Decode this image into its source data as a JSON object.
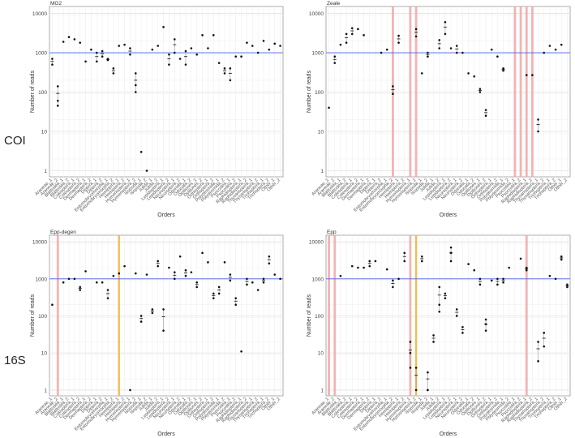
{
  "figure": {
    "row_labels": [
      "COI",
      "16S"
    ]
  },
  "categories": [
    "Araneae_1",
    "Araneae_2",
    "Blattodea_1",
    "Blattodea_2",
    "Coleoptera_1",
    "Coleoptera_2",
    "Dermaptera_1",
    "Dermaptera_2",
    "Diptera_1",
    "Diptera_2",
    "Entomobryomorpha_1",
    "Entomobryomorpha_2",
    "Hemiptera_1",
    "Hemiptera_2",
    "Hymenoptera_1",
    "Hymenoptera_2",
    "Isopoda_1",
    "Isopoda_2",
    "Julida_1",
    "Julida_2",
    "Lepidoptera_1",
    "Lepidoptera_2",
    "Neuroptera_1",
    "Neuroptera_2",
    "Odonata_1",
    "Odonata_2",
    "Opiliones_1",
    "Opiliones_2",
    "Orthoptera_1",
    "Orthoptera_2",
    "Polydesmida_1",
    "Polydesmida_2",
    "Psocodea_1",
    "Psocodea_2",
    "Raphidioptera_1",
    "Raphidioptera_2",
    "Thysanoptera_1",
    "Thysanoptera_2",
    "Trichoptera_1",
    "Trichoptera_2",
    "Other_1",
    "Other_2"
  ],
  "chart_data": [
    {
      "type": "scatter",
      "title": "MG2",
      "xlabel": "Orders",
      "ylabel": "Number of reads",
      "yscale": "log10",
      "ylim": [
        0.7,
        15000
      ],
      "yticks": [
        "1",
        "10",
        "100",
        "1000",
        "10000"
      ],
      "reference_line": 1000,
      "reference_color": "#4a5cf0",
      "highlight_color": "#f4a6a6",
      "orange_color": "#f0b94d",
      "pink_bands": [],
      "orange_bands": [],
      "points": [
        [
          700,
          500
        ],
        [
          140,
          45,
          60
        ],
        [
          1900
        ],
        [
          2500
        ],
        [
          2200
        ],
        [
          1800
        ],
        [
          600
        ],
        [
          1200
        ],
        [
          1000,
          600
        ],
        [
          800,
          1100
        ],
        [
          650,
          700
        ],
        [
          400,
          300
        ],
        [
          1500
        ],
        [
          1600
        ],
        [
          1300,
          900
        ],
        [
          300,
          100,
          150
        ],
        [
          3
        ],
        [
          1
        ],
        [
          1200
        ],
        [
          1500
        ],
        [
          4500
        ],
        [
          500,
          900
        ],
        [
          1000,
          2200
        ],
        [
          700
        ],
        [
          500,
          1100
        ],
        [
          1300
        ],
        [
          900
        ],
        [
          2800
        ],
        [
          1300
        ],
        [
          2800
        ],
        [
          550
        ],
        [
          300,
          400
        ],
        [
          200,
          400
        ],
        [
          800
        ],
        [
          800
        ],
        [
          1800
        ],
        [
          1500
        ],
        [
          1000
        ],
        [
          2000
        ],
        [
          1200
        ],
        [
          1700
        ],
        [
          1500
        ]
      ]
    },
    {
      "type": "scatter",
      "title": "Zeale",
      "xlabel": "Orders",
      "ylabel": "Number of reads",
      "yscale": "log10",
      "ylim": [
        0.7,
        15000
      ],
      "yticks": [
        "1",
        "10",
        "100",
        "1000",
        "10000"
      ],
      "reference_line": 1000,
      "reference_color": "#4a5cf0",
      "highlight_color": "#f4a6a6",
      "orange_color": "#f0b94d",
      "pink_bands": [
        11,
        14,
        15,
        32,
        33,
        34,
        35
      ],
      "orange_bands": [],
      "points": [
        [
          40
        ],
        [
          800,
          550
        ],
        [
          1600
        ],
        [
          1800,
          3000
        ],
        [
          4200,
          3000
        ],
        [
          4000
        ],
        [
          2800
        ],
        [
          null
        ],
        [
          null
        ],
        [
          1000
        ],
        [
          1200
        ],
        [
          140,
          90
        ],
        [
          1800,
          2700
        ],
        [
          null
        ],
        [
          null
        ],
        [
          4000,
          2600
        ],
        [
          300
        ],
        [
          1000,
          800
        ],
        [
          null
        ],
        [
          2100,
          1300
        ],
        [
          6000,
          3000
        ],
        [
          1300
        ],
        [
          1500,
          1000
        ],
        [
          1000
        ],
        [
          300
        ],
        [
          250
        ],
        [
          120,
          100
        ],
        [
          35,
          25
        ],
        [
          1200
        ],
        [
          800
        ],
        [
          400,
          350
        ],
        [
          null
        ],
        [
          null
        ],
        [
          null
        ],
        [
          270
        ],
        [
          270
        ],
        [
          20,
          10
        ],
        [
          1000
        ],
        [
          1500
        ],
        [
          1200
        ],
        [
          1600
        ],
        [
          null
        ]
      ]
    },
    {
      "type": "scatter",
      "title": "Epp-degen",
      "xlabel": "Orders",
      "ylabel": "Number of reads",
      "yscale": "log10",
      "ylim": [
        0.7,
        15000
      ],
      "yticks": [
        "1",
        "10",
        "100",
        "1000",
        "10000"
      ],
      "reference_line": 1000,
      "reference_color": "#4a5cf0",
      "highlight_color": "#f4a6a6",
      "orange_color": "#f0b94d",
      "pink_bands": [
        1
      ],
      "orange_bands": [
        12
      ],
      "points": [
        [
          200
        ],
        [
          null
        ],
        [
          800
        ],
        [
          1000
        ],
        [
          1000
        ],
        [
          500,
          600
        ],
        [
          1600
        ],
        [
          null
        ],
        [
          800
        ],
        [
          800
        ],
        [
          500,
          300
        ],
        [
          1200
        ],
        [
          1400
        ],
        [
          2200
        ],
        [
          1
        ],
        [
          1400
        ],
        [
          100,
          70
        ],
        [
          1300
        ],
        [
          120,
          150
        ],
        [
          2200,
          3000
        ],
        [
          150,
          40
        ],
        [
          2000
        ],
        [
          1000,
          1500
        ],
        [
          4000
        ],
        [
          1700,
          1200
        ],
        [
          1500
        ],
        [
          800,
          600
        ],
        [
          5000
        ],
        [
          2800
        ],
        [
          400,
          300
        ],
        [
          600,
          400
        ],
        [
          2800
        ],
        [
          1300,
          900
        ],
        [
          200,
          300
        ],
        [
          11
        ],
        [
          1000,
          700
        ],
        [
          800
        ],
        [
          500
        ],
        [
          1000,
          800
        ],
        [
          4000,
          2600
        ],
        [
          1300
        ],
        [
          1000
        ]
      ]
    },
    {
      "type": "scatter",
      "title": "Epp",
      "xlabel": "Orders",
      "ylabel": "Number of reads",
      "yscale": "log10",
      "ylim": [
        0.7,
        15000
      ],
      "yticks": [
        "1",
        "10",
        "100",
        "1000",
        "10000"
      ],
      "reference_line": 1000,
      "reference_color": "#4a5cf0",
      "highlight_color": "#f4a6a6",
      "orange_color": "#f0b94d",
      "pink_bands": [
        0,
        1,
        14,
        34
      ],
      "orange_bands": [
        15
      ],
      "points": [
        [
          null
        ],
        [
          null
        ],
        [
          1200
        ],
        [
          null
        ],
        [
          2200
        ],
        [
          2000
        ],
        [
          2000
        ],
        [
          2200,
          3000
        ],
        [
          3000
        ],
        [
          null
        ],
        [
          1800
        ],
        [
          900,
          600
        ],
        [
          1000
        ],
        [
          3000,
          5000
        ],
        [
          4,
          10,
          20
        ],
        [
          4,
          1
        ],
        [
          4000,
          3000
        ],
        [
          3,
          1,
          1
        ],
        [
          30,
          20
        ],
        [
          600,
          200,
          130
        ],
        [
          300,
          400
        ],
        [
          7000,
          5000,
          3000
        ],
        [
          100,
          150
        ],
        [
          35,
          50
        ],
        [
          2500
        ],
        [
          1700
        ],
        [
          1000,
          700
        ],
        [
          80,
          60,
          40
        ],
        [
          900
        ],
        [
          1000,
          700
        ],
        [
          1000,
          800
        ],
        [
          2000
        ],
        [
          null
        ],
        [
          3500
        ],
        [
          1700,
          2000
        ],
        [
          null
        ],
        [
          20,
          6
        ],
        [
          35,
          15
        ],
        [
          1200
        ],
        [
          1000
        ],
        [
          4000,
          3300
        ],
        [
          700,
          600
        ]
      ]
    }
  ]
}
